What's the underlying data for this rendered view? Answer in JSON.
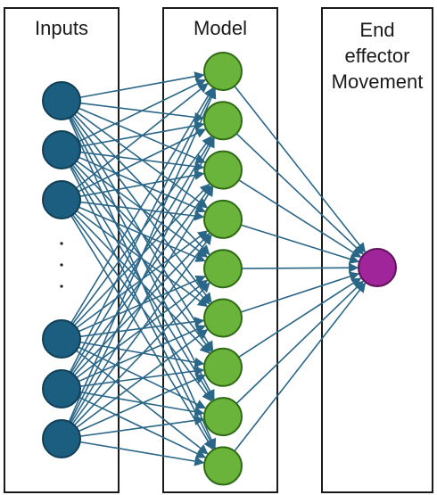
{
  "panels": {
    "inputs": {
      "title": "Inputs"
    },
    "model": {
      "title": "Model"
    },
    "output": {
      "title_lines": [
        "End",
        "effector",
        "Movement"
      ]
    }
  },
  "ellipsis": ".\n.\n.",
  "network": {
    "input_nodes": 6,
    "hidden_nodes": 9,
    "output_nodes": 1,
    "fully_connected": true
  },
  "colors": {
    "input_node": "#1b5e80",
    "input_stroke": "#113f57",
    "hidden_node": "#6bb43b",
    "hidden_stroke": "#2f6b16",
    "output_node": "#a0259a",
    "output_stroke": "#5e1259",
    "edge": "#2a6688",
    "panel_border": "#1a1a1a"
  }
}
